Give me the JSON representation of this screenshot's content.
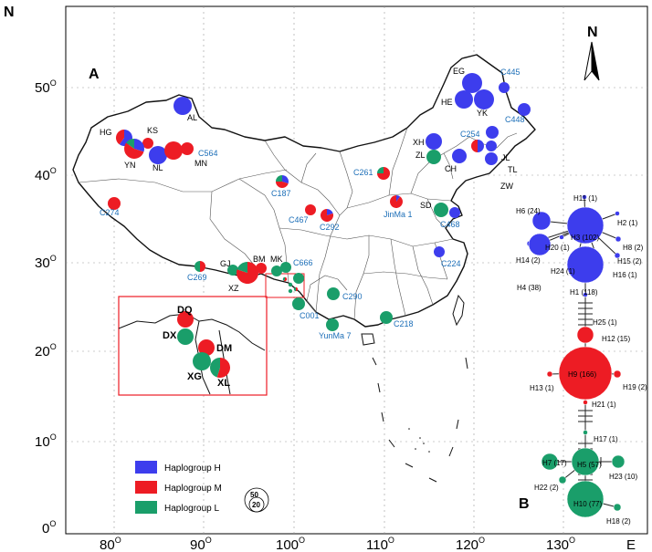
{
  "colors": {
    "H": "#3d3ded",
    "M": "#ed1c24",
    "L": "#1a9e6a",
    "frame": "#000000",
    "inset": "#ed1c24",
    "label_blue": "#1d6fb8"
  },
  "axes": {
    "y_axis_label": "N",
    "x_axis_label": "E",
    "y_ticks": [
      {
        "v": "50",
        "s": "O"
      },
      {
        "v": "40",
        "s": "O"
      },
      {
        "v": "30",
        "s": "O"
      },
      {
        "v": "20",
        "s": "O"
      },
      {
        "v": "10",
        "s": "O"
      },
      {
        "v": "0",
        "s": "O"
      }
    ],
    "x_ticks": [
      {
        "v": "80",
        "s": "O"
      },
      {
        "v": "90",
        "s": "O"
      },
      {
        "v": "100",
        "s": "O"
      },
      {
        "v": "110",
        "s": "O"
      },
      {
        "v": "120",
        "s": "O"
      },
      {
        "v": "130",
        "s": "O"
      }
    ]
  },
  "panels": {
    "a": "A",
    "b": "B",
    "north": "N"
  },
  "map_sites": {
    "black": [
      "AL",
      "HG",
      "KS",
      "YN",
      "NL",
      "MN",
      "EG",
      "HE",
      "YK",
      "XH",
      "JL",
      "ZL",
      "TL",
      "CH",
      "ZW",
      "SD",
      "GJ",
      "BM",
      "MK",
      "XZ"
    ],
    "blue": [
      "C564",
      "C445",
      "C448",
      "C254",
      "C274",
      "C187",
      "C261",
      "C467",
      "C292",
      "JinMa 1",
      "C468",
      "C224",
      "C269",
      "C666",
      "C290",
      "C001",
      "C218",
      "YunMa 7"
    ]
  },
  "inset_sites": [
    "DQ",
    "DX",
    "DM",
    "XG",
    "XL"
  ],
  "legend": {
    "items": [
      {
        "label": "Haplogroup H",
        "color": "#3d3ded"
      },
      {
        "label": "Haplogroup M",
        "color": "#ed1c24"
      },
      {
        "label": "Haplogroup L",
        "color": "#1a9e6a"
      }
    ],
    "scale_large": "50",
    "scale_small": "20"
  },
  "network": {
    "nodes": [
      "H11 (1)",
      "H6 (24)",
      "H2 (1)",
      "H3 (102)",
      "H20 (1)",
      "H8 (2)",
      "H14 (2)",
      "H15 (2)",
      "H24 (1)",
      "H16 (1)",
      "H4 (38)",
      "H1 (118)",
      "H25 (1)",
      "H12 (15)",
      "H9 (166)",
      "H13 (1)",
      "H19 (2)",
      "H21 (1)",
      "H17 (1)",
      "H7 (17)",
      "H5 (57)",
      "H23 (10)",
      "H22 (2)",
      "H10 (77)",
      "H18 (2)"
    ]
  }
}
